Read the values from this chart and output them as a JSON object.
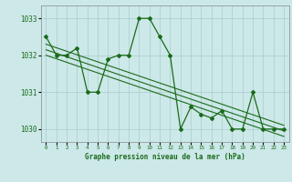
{
  "title": "Graphe pression niveau de la mer (hPa)",
  "x_values": [
    0,
    1,
    2,
    3,
    4,
    5,
    6,
    7,
    8,
    9,
    10,
    11,
    12,
    13,
    14,
    15,
    16,
    17,
    18,
    19,
    20,
    21,
    22,
    23
  ],
  "y_values": [
    1032.5,
    1032.0,
    1032.0,
    1032.2,
    1031.0,
    1031.0,
    1031.9,
    1032.0,
    1032.0,
    1033.0,
    1033.0,
    1032.5,
    1032.0,
    1030.0,
    1030.6,
    1030.4,
    1030.3,
    1030.5,
    1030.0,
    1030.0,
    1031.0,
    1030.0,
    1030.0,
    1030.0
  ],
  "line_color": "#1a6b1a",
  "bg_color": "#cce8e8",
  "grid_color": "#aacccc",
  "text_color": "#1a6b1a",
  "ylim": [
    1029.65,
    1033.35
  ],
  "yticks": [
    1030,
    1031,
    1032,
    1033
  ],
  "xlim": [
    -0.5,
    23.5
  ],
  "trend_line1": [
    0,
    1032.3,
    23,
    1030.1
  ],
  "trend_line2": [
    0,
    1032.15,
    23,
    1029.95
  ],
  "trend_line3": [
    0,
    1032.0,
    23,
    1029.8
  ]
}
